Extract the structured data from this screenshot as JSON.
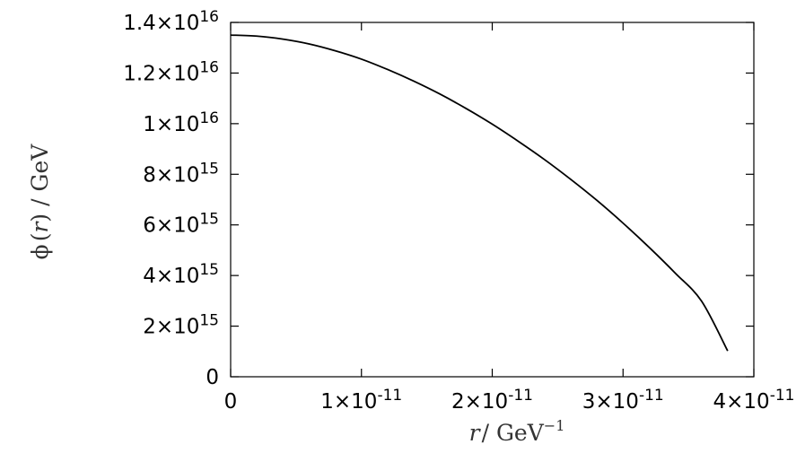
{
  "chart_data": {
    "type": "line",
    "xlabel": {
      "var": "r",
      "sep": "/ GeV",
      "exp": "−1"
    },
    "ylabel": {
      "phi": "ϕ",
      "open": "(",
      "var": "r",
      "close": ")",
      "unit": " / GeV"
    },
    "xlim": [
      0,
      4e-11
    ],
    "ylim": [
      0,
      1.4e+16
    ],
    "x_ticks": [
      {
        "value": 0,
        "mant": "0",
        "exp": ""
      },
      {
        "value": 1e-11,
        "mant": "1×10",
        "exp": "-11"
      },
      {
        "value": 2e-11,
        "mant": "2×10",
        "exp": "-11"
      },
      {
        "value": 3e-11,
        "mant": "3×10",
        "exp": "-11"
      },
      {
        "value": 4e-11,
        "mant": "4×10",
        "exp": "-11"
      }
    ],
    "y_ticks": [
      {
        "value": 0,
        "mant": "0",
        "exp": ""
      },
      {
        "value": 2000000000000000.0,
        "mant": "2×10",
        "exp": "15"
      },
      {
        "value": 4000000000000000.0,
        "mant": "4×10",
        "exp": "15"
      },
      {
        "value": 6000000000000000.0,
        "mant": "6×10",
        "exp": "15"
      },
      {
        "value": 8000000000000000.0,
        "mant": "8×10",
        "exp": "15"
      },
      {
        "value": 1e+16,
        "mant": "1×10",
        "exp": "16"
      },
      {
        "value": 1.2e+16,
        "mant": "1.2×10",
        "exp": "16"
      },
      {
        "value": 1.4e+16,
        "mant": "1.4×10",
        "exp": "16"
      }
    ],
    "grid": false,
    "series": [
      {
        "color": "#000000",
        "x": [
          0,
          2e-12,
          4e-12,
          6e-12,
          8e-12,
          1e-11,
          1.2e-11,
          1.4e-11,
          1.6e-11,
          1.8e-11,
          2e-11,
          2.2e-11,
          2.4e-11,
          2.6e-11,
          2.8e-11,
          3e-11,
          3.2e-11,
          3.4e-11,
          3.6e-11,
          3.8e-11
        ],
        "y": [
          1.35e+16,
          1.346e+16,
          1.334e+16,
          1.315e+16,
          1.288e+16,
          1.255e+16,
          1.214e+16,
          1.168e+16,
          1.117e+16,
          1.06e+16,
          9980000000000000.0,
          9300000000000000.0,
          8580000000000000.0,
          7800000000000000.0,
          6970000000000000.0,
          6070000000000000.0,
          5110000000000000.0,
          4090000000000000.0,
          2990000000000000.0,
          1020000000000000.0
        ]
      }
    ]
  }
}
